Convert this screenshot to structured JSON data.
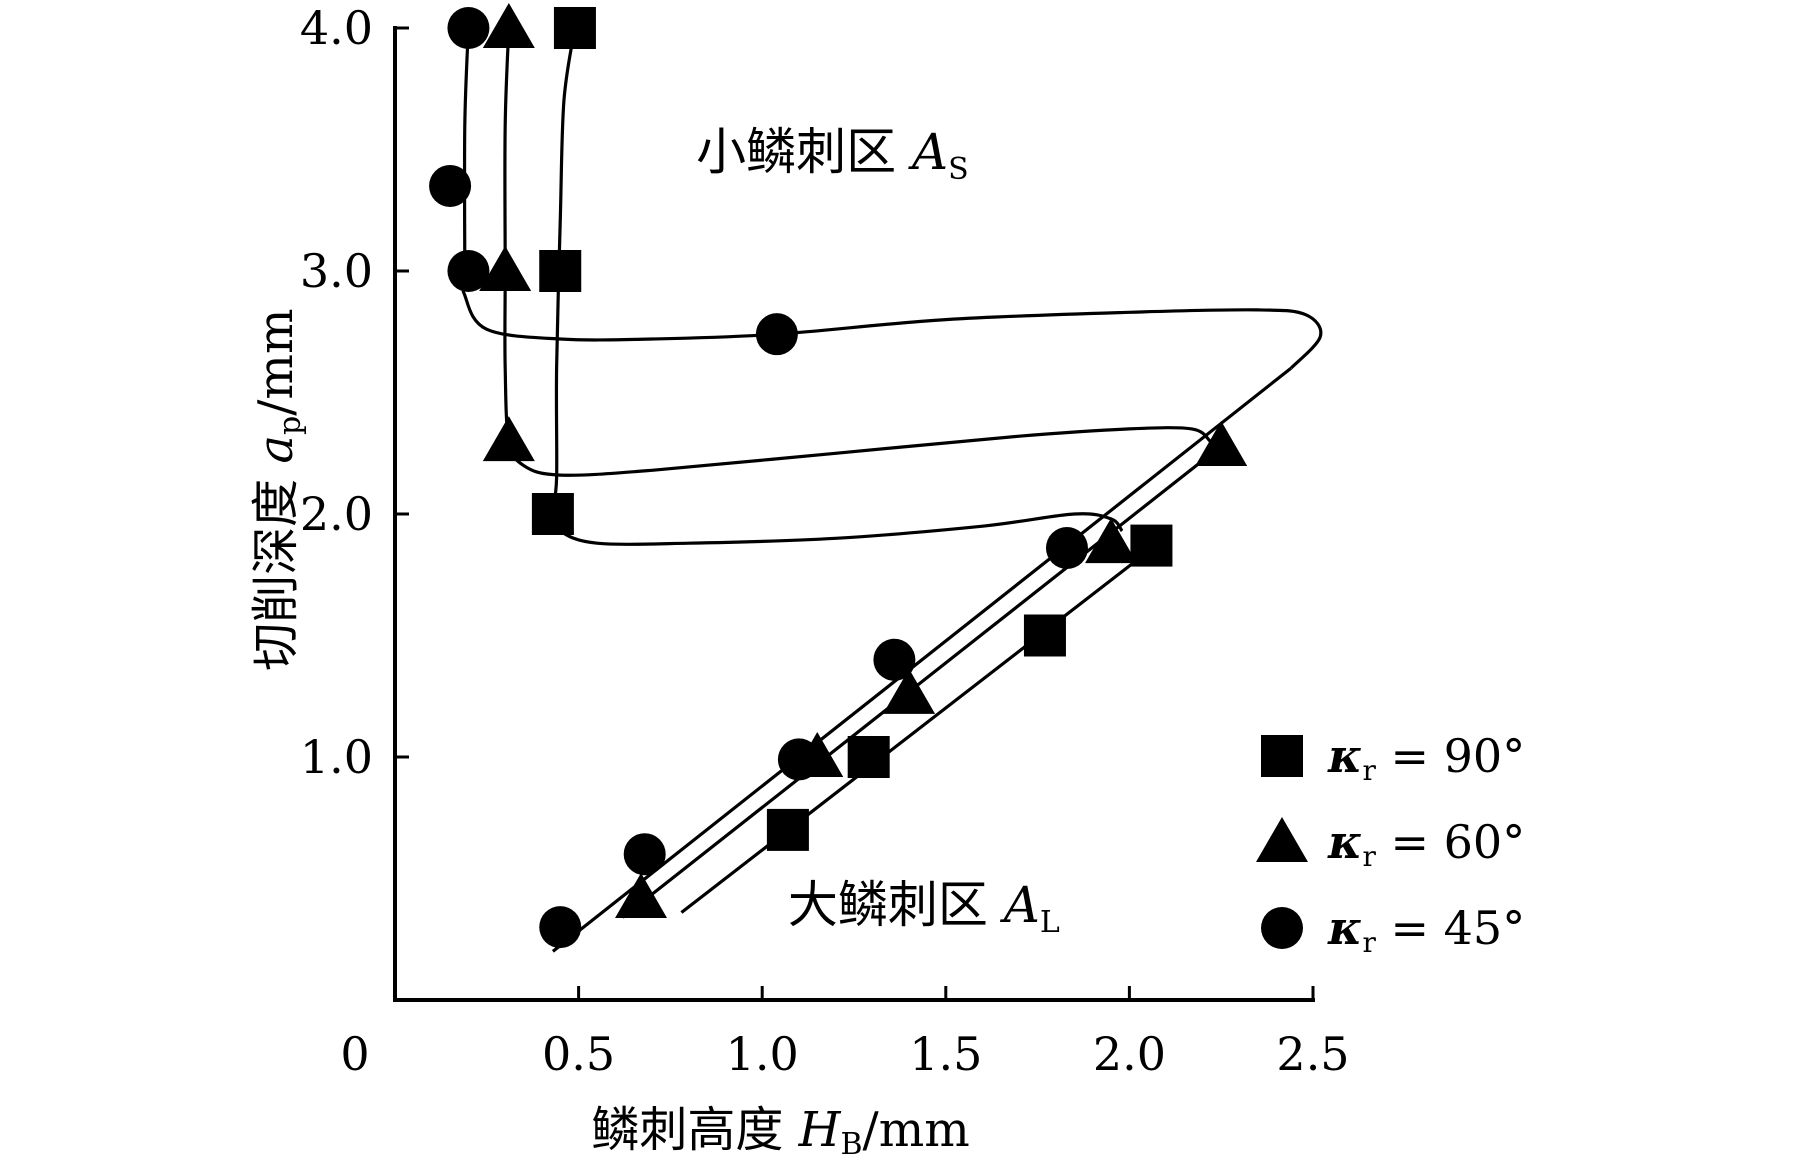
{
  "chart_data": {
    "type": "scatter",
    "title": "",
    "xlabel": {
      "main": "鳞刺高度 ",
      "var": "H",
      "sub": "B",
      "unit": "/mm"
    },
    "ylabel": {
      "main": "切削深度 ",
      "var": "a",
      "sub": "p",
      "unit": "/mm"
    },
    "xlim": [
      0,
      2.5
    ],
    "ylim": [
      0,
      4.0
    ],
    "x_ticks": [
      {
        "value": 0,
        "label": "0"
      },
      {
        "value": 0.5,
        "label": "0.5"
      },
      {
        "value": 1.0,
        "label": "1.0"
      },
      {
        "value": 1.5,
        "label": "1.5"
      },
      {
        "value": 2.0,
        "label": "2.0"
      },
      {
        "value": 2.5,
        "label": "2.5"
      }
    ],
    "y_ticks": [
      {
        "value": 1.0,
        "label": "1.0"
      },
      {
        "value": 2.0,
        "label": "2.0"
      },
      {
        "value": 3.0,
        "label": "3.0"
      },
      {
        "value": 4.0,
        "label": "4.0"
      }
    ],
    "annotations": [
      {
        "text": "小鳞刺区 ",
        "var": "A",
        "sub": "S",
        "x": 0.82,
        "y": 3.42
      },
      {
        "text": "大鳞刺区 ",
        "var": "A",
        "sub": "L",
        "x": 1.07,
        "y": 0.32
      }
    ],
    "legend": {
      "placement": "bottom-right"
    },
    "series": [
      {
        "name": "κr = 90°",
        "legend_prefix": "κ",
        "legend_sub": "r",
        "legend_suffix": " = 90°",
        "marker": "square",
        "points": [
          [
            0.49,
            4.0
          ],
          [
            0.45,
            3.0
          ],
          [
            0.43,
            2.0
          ],
          [
            1.07,
            0.7
          ],
          [
            1.29,
            1.0
          ],
          [
            1.77,
            1.5
          ],
          [
            2.06,
            1.87
          ]
        ],
        "curve": [
          [
            0.49,
            4.0
          ],
          [
            0.46,
            3.7
          ],
          [
            0.45,
            3.2
          ],
          [
            0.44,
            2.6
          ],
          [
            0.44,
            2.15
          ],
          [
            0.43,
            2.0
          ],
          [
            0.45,
            1.93
          ],
          [
            0.55,
            1.88
          ],
          [
            0.8,
            1.88
          ],
          [
            1.2,
            1.9
          ],
          [
            1.6,
            1.95
          ],
          [
            1.85,
            2.0
          ],
          [
            1.95,
            1.98
          ],
          [
            1.98,
            1.93
          ]
        ],
        "fit_line": [
          [
            0.78,
            0.36
          ],
          [
            2.08,
            1.88
          ]
        ]
      },
      {
        "name": "κr = 60°",
        "legend_prefix": "κ",
        "legend_sub": "r",
        "legend_suffix": " = 60°",
        "marker": "triangle",
        "points": [
          [
            0.31,
            4.0
          ],
          [
            0.3,
            3.0
          ],
          [
            0.31,
            2.3
          ],
          [
            0.67,
            0.42
          ],
          [
            1.15,
            1.0
          ],
          [
            1.4,
            1.26
          ],
          [
            1.95,
            1.88
          ],
          [
            2.25,
            2.28
          ]
        ],
        "curve": [
          [
            0.31,
            4.0
          ],
          [
            0.3,
            3.6
          ],
          [
            0.3,
            3.0
          ],
          [
            0.3,
            2.6
          ],
          [
            0.31,
            2.3
          ],
          [
            0.35,
            2.2
          ],
          [
            0.45,
            2.16
          ],
          [
            0.7,
            2.18
          ],
          [
            1.2,
            2.25
          ],
          [
            1.7,
            2.32
          ],
          [
            2.0,
            2.35
          ],
          [
            2.17,
            2.35
          ],
          [
            2.22,
            2.3
          ]
        ],
        "fit_line": [
          [
            0.62,
            0.34
          ],
          [
            2.25,
            2.28
          ]
        ]
      },
      {
        "name": "κr = 45°",
        "legend_prefix": "κ",
        "legend_sub": "r",
        "legend_suffix": " = 45°",
        "marker": "circle",
        "points": [
          [
            0.2,
            4.0
          ],
          [
            0.15,
            3.35
          ],
          [
            0.2,
            3.0
          ],
          [
            1.04,
            2.74
          ],
          [
            0.45,
            0.3
          ],
          [
            0.68,
            0.6
          ],
          [
            1.1,
            0.99
          ],
          [
            1.36,
            1.4
          ],
          [
            1.83,
            1.86
          ]
        ],
        "curve": [
          [
            0.2,
            4.0
          ],
          [
            0.19,
            3.6
          ],
          [
            0.19,
            3.0
          ],
          [
            0.19,
            2.9
          ],
          [
            0.25,
            2.76
          ],
          [
            0.45,
            2.72
          ],
          [
            0.7,
            2.72
          ],
          [
            1.04,
            2.74
          ],
          [
            1.5,
            2.8
          ],
          [
            2.0,
            2.83
          ],
          [
            2.35,
            2.84
          ],
          [
            2.48,
            2.82
          ],
          [
            2.52,
            2.73
          ],
          [
            2.44,
            2.6
          ]
        ],
        "fit_line": [
          [
            0.43,
            0.2
          ],
          [
            2.44,
            2.6
          ]
        ]
      }
    ]
  }
}
